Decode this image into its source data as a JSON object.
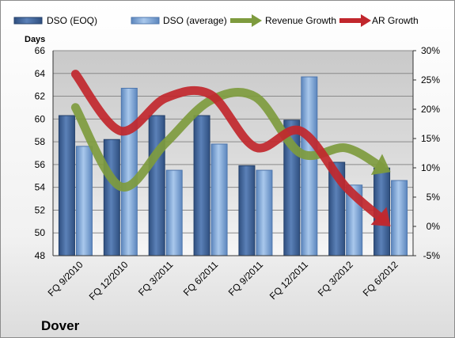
{
  "company": "Dover",
  "chart_data": {
    "type": "bar",
    "categories": [
      "FQ 9/2010",
      "FQ 12/2010",
      "FQ 3/2011",
      "FQ 6/2011",
      "FQ 9/2011",
      "FQ 12/2011",
      "FQ 3/2012",
      "FQ 6/2012"
    ],
    "ylabel": "Days",
    "ylim": [
      48,
      66
    ],
    "yticks": [
      "48",
      "50",
      "52",
      "54",
      "56",
      "58",
      "60",
      "62",
      "64",
      "66"
    ],
    "y2lim": [
      -5,
      30
    ],
    "y2ticks": [
      "-5%",
      "0%",
      "5%",
      "10%",
      "15%",
      "20%",
      "25%",
      "30%"
    ],
    "series": [
      {
        "name": "DSO (EOQ)",
        "type": "bar",
        "axis": "left",
        "color": "#4a6ea3",
        "values": [
          60.3,
          58.2,
          60.3,
          60.3,
          55.9,
          59.9,
          56.2,
          55.7
        ]
      },
      {
        "name": "DSO (average)",
        "type": "bar",
        "axis": "left",
        "color": "#8fb4df",
        "values": [
          57.6,
          62.7,
          55.5,
          57.8,
          55.5,
          63.7,
          54.2,
          54.6
        ]
      },
      {
        "name": "Revenue Growth",
        "type": "line",
        "axis": "right",
        "color": "#7e9b3e",
        "values": [
          20.3,
          6.8,
          14.2,
          21.5,
          22.1,
          12.5,
          13.4,
          9.3
        ]
      },
      {
        "name": "AR Growth",
        "type": "line",
        "axis": "right",
        "color": "#c1272d",
        "values": [
          26.0,
          16.3,
          21.9,
          22.5,
          13.5,
          16.3,
          6.8,
          0.0
        ]
      }
    ],
    "grid": "horizontal",
    "legend": "top"
  }
}
